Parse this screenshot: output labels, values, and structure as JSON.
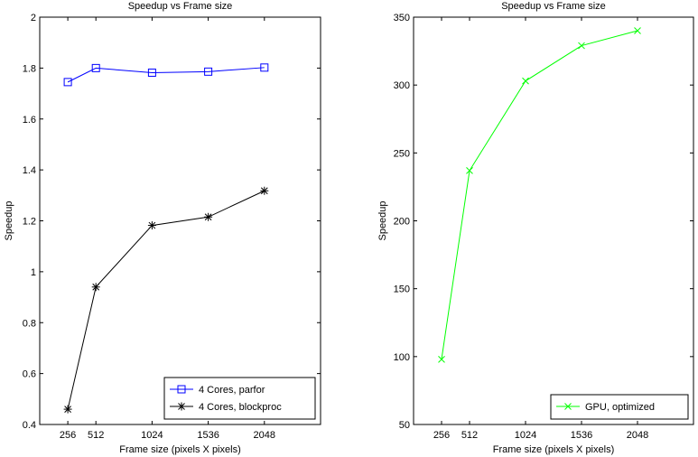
{
  "chart_data": [
    {
      "type": "line",
      "title": "Speedup vs Frame size",
      "xlabel": "Frame size (pixels X pixels)",
      "ylabel": "Speedup",
      "x": [
        256,
        512,
        1024,
        1536,
        2048
      ],
      "xticks": [
        256,
        512,
        1024,
        1536,
        2048
      ],
      "xlim": [
        0,
        2560
      ],
      "ylim": [
        0.4,
        2
      ],
      "yticks": [
        "0.4",
        "0.6",
        "0.8",
        "1",
        "1.2",
        "1.4",
        "1.6",
        "1.8",
        "2"
      ],
      "legend_position": "bottom-right",
      "series": [
        {
          "name": "4 Cores, parfor",
          "color": "#0000ff",
          "marker": "square",
          "values": [
            1.745,
            1.8,
            1.782,
            1.786,
            1.802
          ]
        },
        {
          "name": "4 Cores, blockproc",
          "color": "#000000",
          "marker": "star",
          "values": [
            0.46,
            0.94,
            1.182,
            1.215,
            1.318
          ]
        }
      ]
    },
    {
      "type": "line",
      "title": "Speedup vs Frame size",
      "xlabel": "Frame size (pixels X pixels)",
      "ylabel": "Speedup",
      "x": [
        256,
        512,
        1024,
        1536,
        2048
      ],
      "xticks": [
        256,
        512,
        1024,
        1536,
        2048
      ],
      "xlim": [
        0,
        2560
      ],
      "ylim": [
        50,
        350
      ],
      "yticks": [
        "50",
        "100",
        "150",
        "200",
        "250",
        "300",
        "350"
      ],
      "legend_position": "bottom-right",
      "series": [
        {
          "name": "GPU, optimized",
          "color": "#00ff00",
          "marker": "x",
          "values": [
            98,
            237,
            303,
            329,
            340
          ]
        }
      ]
    }
  ]
}
